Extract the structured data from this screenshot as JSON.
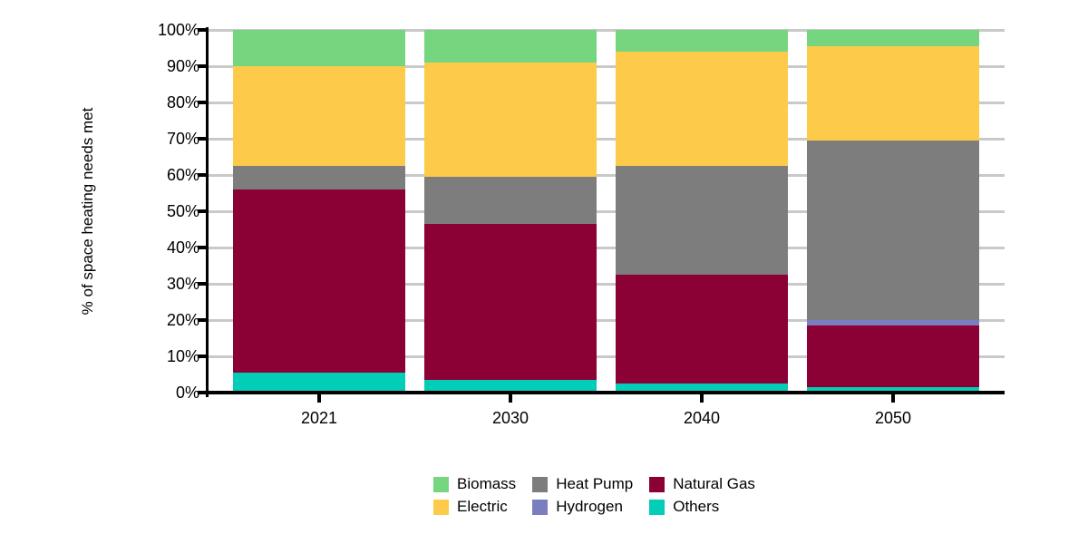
{
  "chart_data": {
    "type": "bar",
    "stacked": true,
    "title": "",
    "ylabel": "% of space heating needs met",
    "xlabel": "",
    "categories": [
      "2021",
      "2030",
      "2040",
      "2050"
    ],
    "series": [
      {
        "name": "Others",
        "color": "#02cdb6",
        "values": [
          5.5,
          3.5,
          2.5,
          1.5
        ]
      },
      {
        "name": "Natural Gas",
        "color": "#8b0035",
        "values": [
          50.5,
          43.0,
          30.0,
          17.0
        ]
      },
      {
        "name": "Hydrogen",
        "color": "#7a7ec0",
        "values": [
          0,
          0,
          0,
          1.5
        ]
      },
      {
        "name": "Heat Pump",
        "color": "#7d7d7d",
        "values": [
          6.5,
          13.0,
          30.0,
          49.5
        ]
      },
      {
        "name": "Electric",
        "color": "#fdca4a",
        "values": [
          27.5,
          31.5,
          31.5,
          26.0
        ]
      },
      {
        "name": "Biomass",
        "color": "#76d67f",
        "values": [
          10.0,
          9.0,
          6.0,
          4.5
        ]
      }
    ],
    "ylim": [
      0,
      100
    ],
    "ytick_labels": [
      "0%",
      "10%",
      "20%",
      "30%",
      "40%",
      "50%",
      "60%",
      "70%",
      "80%",
      "90%",
      "100%"
    ],
    "grid": true,
    "gridline_color": "#c9c9c9",
    "axis_color": "#000000",
    "legend_position": "bottom",
    "legend_order": [
      "Biomass",
      "Heat Pump",
      "Natural Gas",
      "Electric",
      "Hydrogen",
      "Others"
    ]
  }
}
